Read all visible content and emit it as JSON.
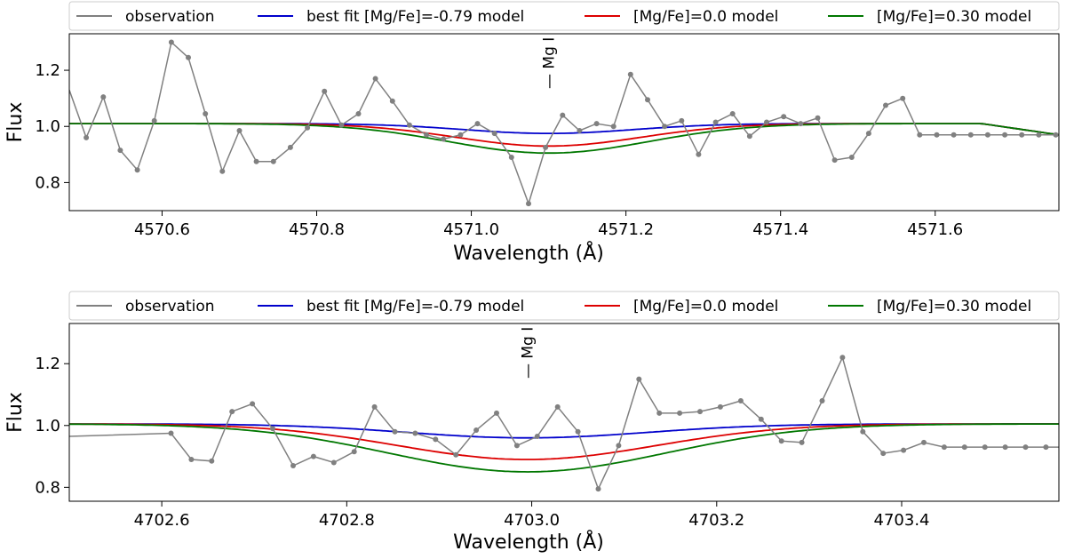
{
  "chart_data": [
    {
      "type": "line",
      "xlabel": "Wavelength (Å)",
      "ylabel": "Flux",
      "xlim": [
        4570.48,
        4571.76
      ],
      "ylim": [
        0.7,
        1.33
      ],
      "xticks": [
        4570.6,
        4570.8,
        4571.0,
        4571.2,
        4571.4,
        4571.6
      ],
      "xtick_labels": [
        "4570.6",
        "4570.8",
        "4571.0",
        "4571.2",
        "4571.4",
        "4571.6"
      ],
      "yticks": [
        0.8,
        1.0,
        1.2
      ],
      "ytick_labels": [
        "0.8",
        "1.0",
        "1.2"
      ],
      "annotation": {
        "text": "Mg I",
        "x": 4571.1
      },
      "legend": {
        "placement": "top",
        "entries": [
          "observation",
          "best fit [Mg/Fe]=-0.79 model",
          "[Mg/Fe]=0.0 model",
          "[Mg/Fe]=0.30 model"
        ]
      },
      "observation": {
        "name": "observation",
        "color": "#808080",
        "x": [
          4570.48,
          4570.502,
          4570.524,
          4570.546,
          4570.568,
          4570.59,
          4570.612,
          4570.634,
          4570.656,
          4570.678,
          4570.7,
          4570.722,
          4570.744,
          4570.766,
          4570.788,
          4570.81,
          4570.832,
          4570.854,
          4570.876,
          4570.898,
          4570.92,
          4570.942,
          4570.964,
          4570.986,
          4571.008,
          4571.03,
          4571.052,
          4571.074,
          4571.096,
          4571.118,
          4571.14,
          4571.162,
          4571.184,
          4571.206,
          4571.228,
          4571.25,
          4571.272,
          4571.294,
          4571.316,
          4571.338,
          4571.36,
          4571.382,
          4571.404,
          4571.426,
          4571.448,
          4571.47,
          4571.492,
          4571.514,
          4571.536,
          4571.558,
          4571.58,
          4571.602,
          4571.624,
          4571.646,
          4571.668,
          4571.69,
          4571.712,
          4571.734,
          4571.756
        ],
        "y": [
          1.13,
          0.96,
          1.105,
          0.915,
          0.845,
          1.02,
          1.3,
          1.245,
          1.045,
          0.84,
          0.985,
          0.875,
          0.875,
          0.925,
          0.995,
          1.125,
          1.005,
          1.045,
          1.17,
          1.09,
          1.005,
          0.97,
          0.955,
          0.97,
          1.01,
          0.975,
          0.89,
          0.725,
          0.925,
          1.04,
          0.985,
          1.01,
          1.0,
          1.185,
          1.095,
          1.0,
          1.02,
          0.9,
          1.015,
          1.045,
          0.965,
          1.015,
          1.035,
          1.01,
          1.03,
          0.88,
          0.89,
          0.975,
          1.075,
          1.1,
          0.97,
          0.97,
          0.97,
          0.97,
          0.97,
          0.97,
          0.97,
          0.97,
          0.97
        ]
      },
      "models": [
        {
          "name": "best fit [Mg/Fe]=-0.79 model",
          "color": "#0000cc",
          "continuum": 1.01,
          "depth": 0.035,
          "center": 4571.1,
          "sigma": 0.11
        },
        {
          "name": "[Mg/Fe]=0.0 model",
          "color": "#dd0000",
          "continuum": 1.01,
          "depth": 0.08,
          "center": 4571.1,
          "sigma": 0.12
        },
        {
          "name": "[Mg/Fe]=0.30 model",
          "color": "#007700",
          "continuum": 1.01,
          "depth": 0.105,
          "center": 4571.1,
          "sigma": 0.13
        }
      ]
    },
    {
      "type": "line",
      "xlabel": "Wavelength (Å)",
      "ylabel": "Flux",
      "xlim": [
        4702.5,
        4703.57
      ],
      "ylim": [
        0.755,
        1.33
      ],
      "xticks": [
        4702.6,
        4702.8,
        4703.0,
        4703.2,
        4703.4
      ],
      "xtick_labels": [
        "4702.6",
        "4702.8",
        "4703.0",
        "4703.2",
        "4703.4"
      ],
      "yticks": [
        0.8,
        1.0,
        1.2
      ],
      "ytick_labels": [
        "0.8",
        "1.0",
        "1.2"
      ],
      "annotation": {
        "text": "Mg I",
        "x": 4702.995
      },
      "legend": {
        "placement": "top",
        "entries": [
          "observation",
          "best fit [Mg/Fe]=-0.79 model",
          "[Mg/Fe]=0.0 model",
          "[Mg/Fe]=0.30 model"
        ]
      },
      "observation": {
        "name": "observation",
        "color": "#808080",
        "x": [
          4702.5,
          4702.61,
          4702.632,
          4702.654,
          4702.676,
          4702.698,
          4702.72,
          4702.742,
          4702.764,
          4702.786,
          4702.808,
          4702.83,
          4702.852,
          4702.874,
          4702.896,
          4702.918,
          4702.94,
          4702.962,
          4702.984,
          4703.006,
          4703.028,
          4703.05,
          4703.072,
          4703.094,
          4703.116,
          4703.138,
          4703.16,
          4703.182,
          4703.204,
          4703.226,
          4703.248,
          4703.27,
          4703.292,
          4703.314,
          4703.336,
          4703.358,
          4703.38,
          4703.402,
          4703.424,
          4703.446,
          4703.468,
          4703.49,
          4703.512,
          4703.534,
          4703.556,
          4703.57
        ],
        "y": [
          0.965,
          0.975,
          0.89,
          0.885,
          1.045,
          1.07,
          0.99,
          0.87,
          0.9,
          0.88,
          0.915,
          1.06,
          0.98,
          0.975,
          0.955,
          0.905,
          0.985,
          1.04,
          0.935,
          0.965,
          1.06,
          0.98,
          0.795,
          0.935,
          1.15,
          1.04,
          1.04,
          1.045,
          1.06,
          1.08,
          1.02,
          0.95,
          0.945,
          1.08,
          1.22,
          0.98,
          0.91,
          0.92,
          0.945,
          0.93,
          0.93,
          0.93,
          0.93,
          0.93,
          0.93,
          0.93
        ]
      },
      "models": [
        {
          "name": "best fit [Mg/Fe]=-0.79 model",
          "color": "#0000cc",
          "continuum": 1.005,
          "depth": 0.045,
          "center": 4702.995,
          "sigma": 0.13
        },
        {
          "name": "[Mg/Fe]=0.0 model",
          "color": "#dd0000",
          "continuum": 1.005,
          "depth": 0.115,
          "center": 4702.995,
          "sigma": 0.14
        },
        {
          "name": "[Mg/Fe]=0.30 model",
          "color": "#007700",
          "continuum": 1.005,
          "depth": 0.155,
          "center": 4702.995,
          "sigma": 0.15
        }
      ]
    }
  ]
}
